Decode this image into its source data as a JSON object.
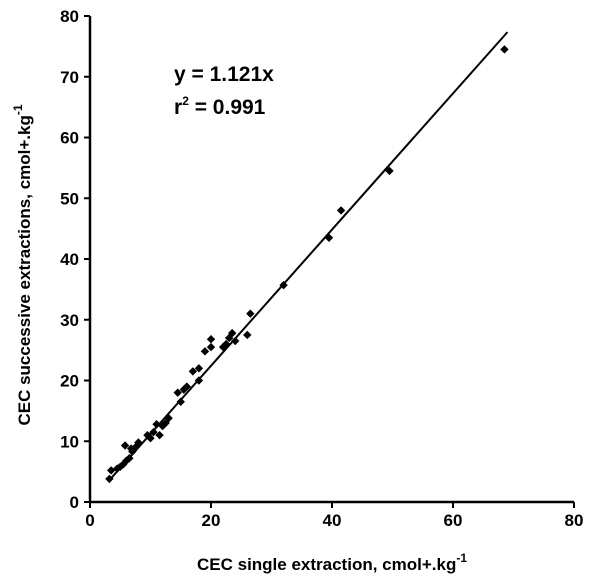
{
  "chart_data": {
    "type": "scatter",
    "xlabel": "CEC single extraction, cmol+.kg",
    "xlabel_sup": "-1",
    "ylabel": "CEC successive extractions, cmol+.kg",
    "ylabel_sup": "-1",
    "xlim": [
      0,
      80
    ],
    "ylim": [
      0,
      80
    ],
    "xticks": [
      "0",
      "20",
      "40",
      "60",
      "80"
    ],
    "yticks": [
      "0",
      "10",
      "20",
      "30",
      "40",
      "50",
      "60",
      "70",
      "80"
    ],
    "grid": false,
    "annotations": {
      "equation": "y = 1.121x",
      "r2_prefix": "r",
      "r2_sup": "2",
      "r2_value": " = 0.991"
    },
    "trendline": {
      "slope": 1.121,
      "intercept": 0,
      "x_start": 3,
      "x_end": 69
    },
    "points": [
      {
        "x": 3.2,
        "y": 3.8
      },
      {
        "x": 3.5,
        "y": 5.2
      },
      {
        "x": 4.5,
        "y": 5.5
      },
      {
        "x": 5.0,
        "y": 5.8
      },
      {
        "x": 5.5,
        "y": 6.2
      },
      {
        "x": 5.8,
        "y": 9.3
      },
      {
        "x": 6.0,
        "y": 6.8
      },
      {
        "x": 6.5,
        "y": 7.2
      },
      {
        "x": 6.8,
        "y": 8.8
      },
      {
        "x": 7.0,
        "y": 8.3
      },
      {
        "x": 7.5,
        "y": 9.0
      },
      {
        "x": 8.0,
        "y": 9.8
      },
      {
        "x": 9.5,
        "y": 11.0
      },
      {
        "x": 10.0,
        "y": 10.5
      },
      {
        "x": 10.5,
        "y": 11.5
      },
      {
        "x": 11.0,
        "y": 12.8
      },
      {
        "x": 11.5,
        "y": 11.0
      },
      {
        "x": 12.0,
        "y": 12.5
      },
      {
        "x": 12.5,
        "y": 13.0
      },
      {
        "x": 13.0,
        "y": 13.8
      },
      {
        "x": 14.5,
        "y": 18.0
      },
      {
        "x": 15.0,
        "y": 16.5
      },
      {
        "x": 15.5,
        "y": 18.5
      },
      {
        "x": 16.0,
        "y": 19.0
      },
      {
        "x": 17.0,
        "y": 21.5
      },
      {
        "x": 18.0,
        "y": 20.0
      },
      {
        "x": 18.0,
        "y": 22.0
      },
      {
        "x": 19.0,
        "y": 24.8
      },
      {
        "x": 20.0,
        "y": 25.5
      },
      {
        "x": 20.0,
        "y": 26.8
      },
      {
        "x": 22.0,
        "y": 25.5
      },
      {
        "x": 22.5,
        "y": 26.0
      },
      {
        "x": 23.0,
        "y": 27.0
      },
      {
        "x": 23.5,
        "y": 27.8
      },
      {
        "x": 24.0,
        "y": 26.5
      },
      {
        "x": 26.0,
        "y": 27.5
      },
      {
        "x": 26.5,
        "y": 31.0
      },
      {
        "x": 32.0,
        "y": 35.7
      },
      {
        "x": 39.5,
        "y": 43.5
      },
      {
        "x": 41.5,
        "y": 48.0
      },
      {
        "x": 49.5,
        "y": 54.5
      },
      {
        "x": 68.5,
        "y": 74.5
      }
    ]
  }
}
